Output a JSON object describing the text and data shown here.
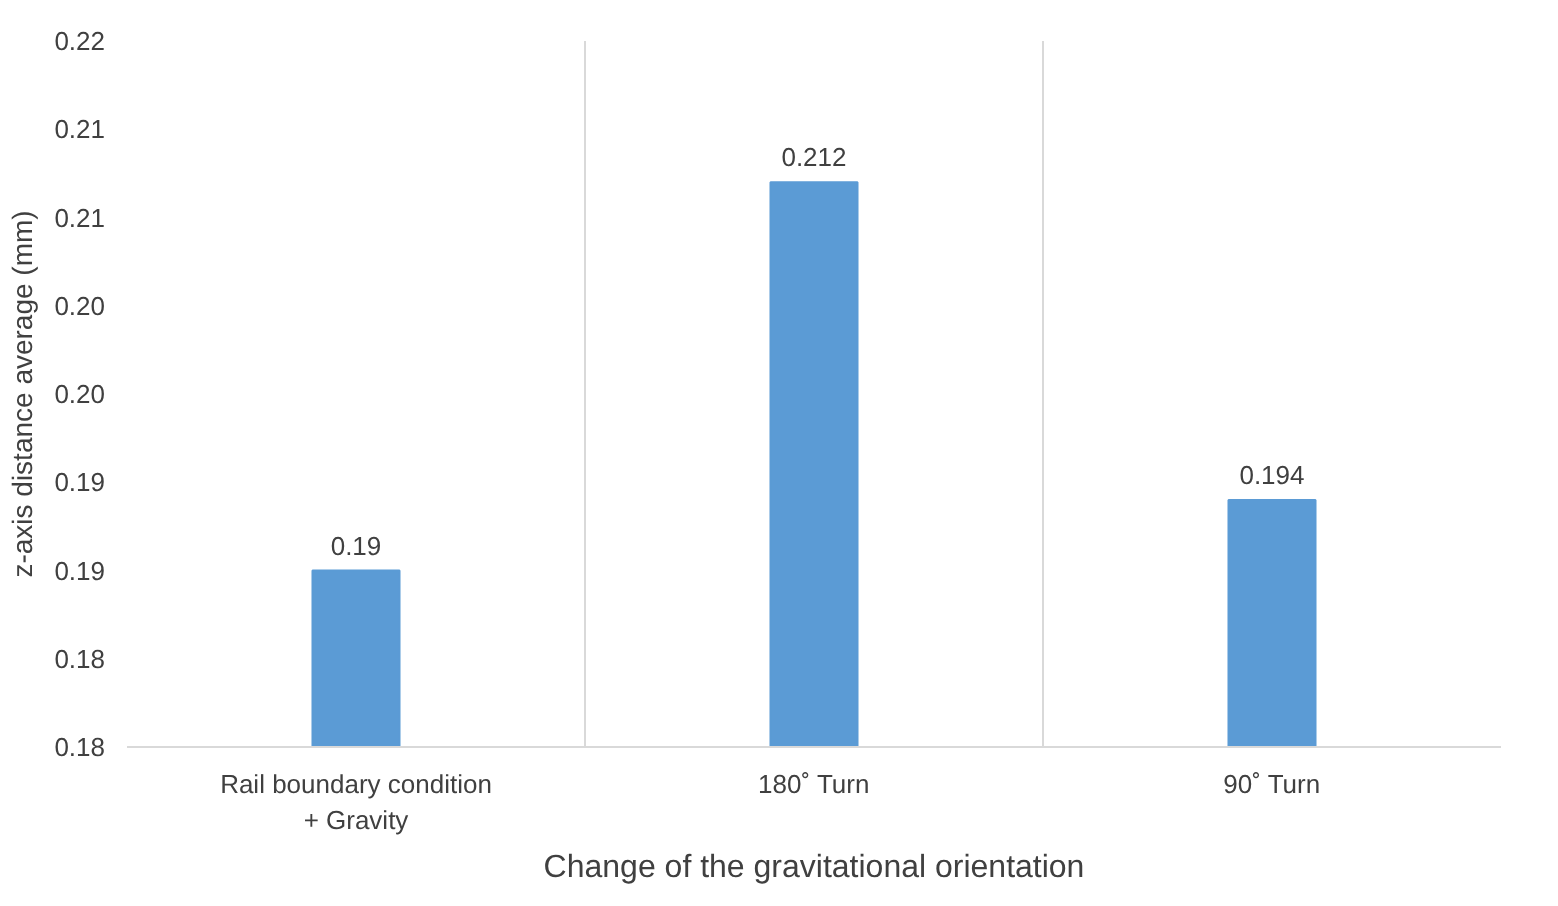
{
  "chart_data": {
    "type": "bar",
    "xlabel": "Change of the gravitational orientation",
    "ylabel": "z-axis distance average (mm)",
    "categories": [
      "Rail boundary condition + Gravity",
      "180˚ Turn",
      "90˚ Turn"
    ],
    "values": [
      0.19,
      0.212,
      0.194
    ],
    "color": "#5b9bd5",
    "data_labels": true,
    "ylim": [
      0.18,
      0.22
    ],
    "yticks": [
      {
        "value": 0.18,
        "label": "0.18"
      },
      {
        "value": 0.185,
        "label": "0.18"
      },
      {
        "value": 0.19,
        "label": "0.19"
      },
      {
        "value": 0.195,
        "label": "0.19"
      },
      {
        "value": 0.2,
        "label": "0.20"
      },
      {
        "value": 0.205,
        "label": "0.20"
      },
      {
        "value": 0.21,
        "label": "0.21"
      },
      {
        "value": 0.215,
        "label": "0.21"
      },
      {
        "value": 0.22,
        "label": "0.22"
      }
    ],
    "grid": "x"
  }
}
